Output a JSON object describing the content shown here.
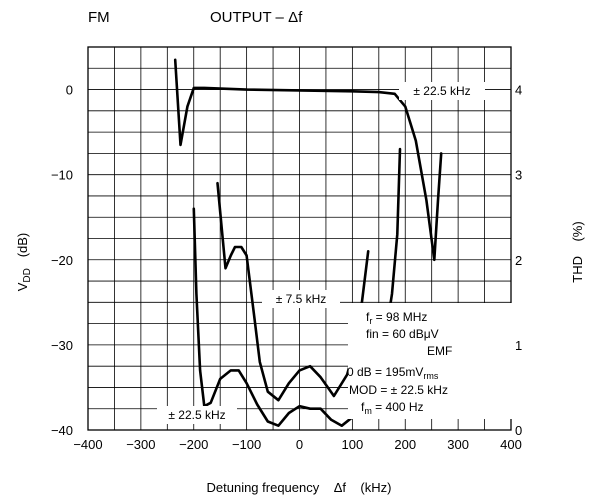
{
  "chart_data": {
    "type": "line",
    "title_left": "FM",
    "title_right": "OUTPUT – Δf",
    "xlabel": "Detuning frequency    Δf    (kHz)",
    "ylabel_left": {
      "main": "V",
      "sub": "DD",
      "unit": "   (dB)"
    },
    "ylabel_right": "THD    (%)",
    "xlim": [
      -400,
      400
    ],
    "ylim_left": [
      -40,
      5
    ],
    "ylim_right": [
      0,
      4.5
    ],
    "x_ticks": [
      -400,
      -300,
      -200,
      -100,
      0,
      100,
      200,
      300,
      400
    ],
    "x_tick_labels": [
      "−400",
      "−300",
      "−200",
      "−100",
      "0",
      "100",
      "200",
      "300",
      "400"
    ],
    "y_left_ticks": [
      0,
      -10,
      -20,
      -30,
      -40
    ],
    "y_left_tick_labels": [
      "0",
      "−10",
      "−20",
      "−30",
      "−40"
    ],
    "y_right_ticks": [
      4,
      3,
      2,
      1,
      0
    ],
    "y_right_tick_labels": [
      "4",
      "3",
      "2",
      "1",
      "0"
    ],
    "grid": true,
    "series": [
      {
        "name": "VDD ± 22.5 kHz",
        "axis": "left",
        "x": [
          -235,
          -225,
          -212,
          -200,
          -180,
          -100,
          0,
          100,
          150,
          180,
          200,
          220,
          240,
          255,
          262,
          268
        ],
        "y": [
          3.5,
          -6.5,
          -2,
          0.2,
          0.2,
          0,
          -0.1,
          -0.2,
          -0.3,
          -0.5,
          -2,
          -6,
          -13,
          -20,
          -13,
          -7.5
        ]
      },
      {
        "name": "THD ± 7.5 kHz",
        "axis": "right",
        "x": [
          -155,
          -140,
          -130,
          -122,
          -110,
          -100,
          -85,
          -75,
          -60,
          -40,
          -20,
          0,
          20,
          40,
          65,
          90,
          110,
          130
        ],
        "y": [
          2.9,
          1.9,
          2.05,
          2.15,
          2.15,
          2.05,
          1.3,
          0.8,
          0.45,
          0.35,
          0.55,
          0.7,
          0.75,
          0.62,
          0.4,
          0.65,
          1.1,
          2.1
        ]
      },
      {
        "name": "THD ± 22.5 kHz",
        "axis": "right",
        "x": [
          -200,
          -195,
          -188,
          -180,
          -168,
          -150,
          -130,
          -115,
          -100,
          -80,
          -60,
          -40,
          -20,
          0,
          20,
          40,
          60,
          80,
          100,
          120,
          140,
          160,
          175,
          185,
          190
        ],
        "y": [
          2.6,
          1.6,
          0.7,
          0.28,
          0.32,
          0.6,
          0.7,
          0.7,
          0.55,
          0.3,
          0.1,
          0.05,
          0.2,
          0.28,
          0.25,
          0.25,
          0.12,
          0.05,
          0.15,
          0.32,
          0.6,
          1.0,
          1.6,
          2.3,
          3.3
        ]
      }
    ],
    "annotations": {
      "a1": "± 22.5 kHz",
      "a2": "± 7.5 kHz",
      "a3": "± 22.5 kHz"
    },
    "conditions": {
      "fr_main": "f",
      "fr_sub": "r",
      "fr_rest": " = 98 MHz",
      "fin": "fin = 60 dBμV",
      "emf": "EMF",
      "odb_main": "0 dB = 195mV",
      "odb_sub": "rms",
      "mod": "MOD = ± 22.5 kHz",
      "fm_main": "f",
      "fm_sub": "m",
      "fm_rest": " = 400 Hz"
    }
  }
}
